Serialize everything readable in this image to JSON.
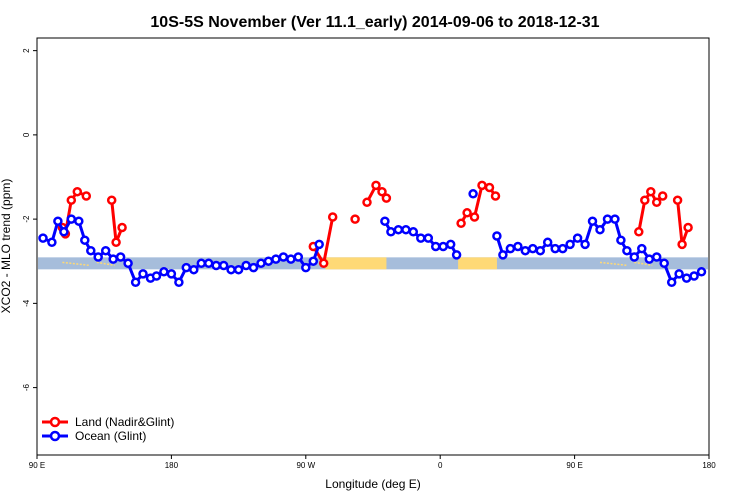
{
  "chart_data": {
    "type": "line",
    "title": "10S-5S November (Ver 11.1_early)   2014-09-06 to 2018-12-31",
    "xlabel": "Longitude (deg E)",
    "ylabel": "XCO2 - MLO trend (ppm)",
    "xlim": [
      90,
      540
    ],
    "ylim": [
      -7.6,
      2.3
    ],
    "xticks": [
      {
        "value": 90,
        "label": "90 E"
      },
      {
        "value": 180,
        "label": "180"
      },
      {
        "value": 270,
        "label": "90 W"
      },
      {
        "value": 360,
        "label": "0"
      },
      {
        "value": 450,
        "label": "90 E"
      },
      {
        "value": 540,
        "label": "180"
      }
    ],
    "yticks": [
      {
        "value": 2,
        "label": "2"
      },
      {
        "value": 0,
        "label": "0"
      },
      {
        "value": -2,
        "label": "-2"
      },
      {
        "value": -4,
        "label": "-4"
      },
      {
        "value": -6,
        "label": "-6"
      }
    ],
    "band": {
      "y": -3.05,
      "blue_color": "#a6bddb",
      "land_color": "#fed976",
      "land_segments": [
        [
          283,
          324
        ],
        [
          372,
          398
        ]
      ],
      "island_segments": [
        [
          107,
          125
        ],
        [
          130,
          142
        ],
        [
          198,
          204
        ],
        [
          467,
          485
        ],
        [
          490,
          502
        ]
      ]
    },
    "legend": {
      "position": "bottom-left"
    },
    "series": [
      {
        "name": "Land (Nadir&Glint)",
        "color": "#ff0000",
        "segments": [
          [
            [
              107,
              -2.2
            ],
            [
              109,
              -2.35
            ],
            [
              113,
              -1.55
            ],
            [
              117,
              -1.35
            ],
            [
              123,
              -1.45
            ]
          ],
          [
            [
              140,
              -1.55
            ],
            [
              143,
              -2.55
            ],
            [
              147,
              -2.2
            ]
          ],
          [
            [
              275,
              -2.65
            ],
            [
              282,
              -3.05
            ],
            [
              288,
              -1.95
            ]
          ],
          [
            [
              303,
              -2.0
            ]
          ],
          [
            [
              311,
              -1.6
            ],
            [
              317,
              -1.2
            ],
            [
              321,
              -1.35
            ],
            [
              324,
              -1.5
            ]
          ],
          [
            [
              374,
              -2.1
            ],
            [
              378,
              -1.85
            ],
            [
              383,
              -1.95
            ],
            [
              388,
              -1.2
            ],
            [
              393,
              -1.25
            ],
            [
              397,
              -1.45
            ]
          ],
          [
            [
              493,
              -2.3
            ],
            [
              497,
              -1.55
            ],
            [
              501,
              -1.35
            ],
            [
              505,
              -1.6
            ],
            [
              509,
              -1.45
            ]
          ],
          [
            [
              519,
              -1.55
            ],
            [
              522,
              -2.6
            ],
            [
              526,
              -2.2
            ]
          ]
        ]
      },
      {
        "name": "Ocean (Glint)",
        "color": "#0000ff",
        "segments": [
          [
            [
              94,
              -2.45
            ],
            [
              100,
              -2.55
            ],
            [
              104,
              -2.05
            ],
            [
              108,
              -2.3
            ],
            [
              113,
              -2.0
            ],
            [
              118,
              -2.05
            ],
            [
              122,
              -2.5
            ],
            [
              126,
              -2.75
            ],
            [
              131,
              -2.9
            ],
            [
              136,
              -2.75
            ],
            [
              141,
              -2.95
            ],
            [
              146,
              -2.9
            ],
            [
              151,
              -3.05
            ],
            [
              156,
              -3.5
            ],
            [
              161,
              -3.3
            ],
            [
              166,
              -3.4
            ],
            [
              170,
              -3.35
            ],
            [
              175,
              -3.25
            ],
            [
              180,
              -3.3
            ],
            [
              185,
              -3.5
            ],
            [
              190,
              -3.15
            ],
            [
              195,
              -3.2
            ],
            [
              200,
              -3.05
            ],
            [
              205,
              -3.05
            ],
            [
              210,
              -3.1
            ],
            [
              215,
              -3.1
            ],
            [
              220,
              -3.2
            ],
            [
              225,
              -3.2
            ],
            [
              230,
              -3.1
            ],
            [
              235,
              -3.15
            ],
            [
              240,
              -3.05
            ],
            [
              245,
              -3.0
            ],
            [
              250,
              -2.95
            ],
            [
              255,
              -2.9
            ],
            [
              260,
              -2.95
            ],
            [
              265,
              -2.9
            ],
            [
              270,
              -3.15
            ],
            [
              275,
              -3.0
            ],
            [
              279,
              -2.6
            ]
          ],
          [
            [
              323,
              -2.05
            ],
            [
              327,
              -2.3
            ],
            [
              332,
              -2.25
            ],
            [
              337,
              -2.25
            ],
            [
              342,
              -2.3
            ],
            [
              347,
              -2.45
            ],
            [
              352,
              -2.45
            ],
            [
              357,
              -2.65
            ],
            [
              362,
              -2.65
            ],
            [
              367,
              -2.6
            ],
            [
              371,
              -2.85
            ]
          ],
          [
            [
              382,
              -1.4
            ]
          ],
          [
            [
              398,
              -2.4
            ],
            [
              402,
              -2.85
            ],
            [
              407,
              -2.7
            ],
            [
              412,
              -2.65
            ],
            [
              417,
              -2.75
            ],
            [
              422,
              -2.7
            ],
            [
              427,
              -2.75
            ],
            [
              432,
              -2.55
            ],
            [
              437,
              -2.7
            ],
            [
              442,
              -2.7
            ],
            [
              447,
              -2.6
            ],
            [
              452,
              -2.45
            ],
            [
              457,
              -2.6
            ],
            [
              462,
              -2.05
            ],
            [
              467,
              -2.25
            ],
            [
              472,
              -2.0
            ],
            [
              477,
              -2.0
            ],
            [
              481,
              -2.5
            ],
            [
              485,
              -2.75
            ],
            [
              490,
              -2.9
            ],
            [
              495,
              -2.7
            ],
            [
              500,
              -2.95
            ],
            [
              505,
              -2.9
            ],
            [
              510,
              -3.05
            ],
            [
              515,
              -3.5
            ],
            [
              520,
              -3.3
            ],
            [
              525,
              -3.4
            ],
            [
              530,
              -3.35
            ],
            [
              535,
              -3.25
            ]
          ]
        ]
      }
    ]
  }
}
